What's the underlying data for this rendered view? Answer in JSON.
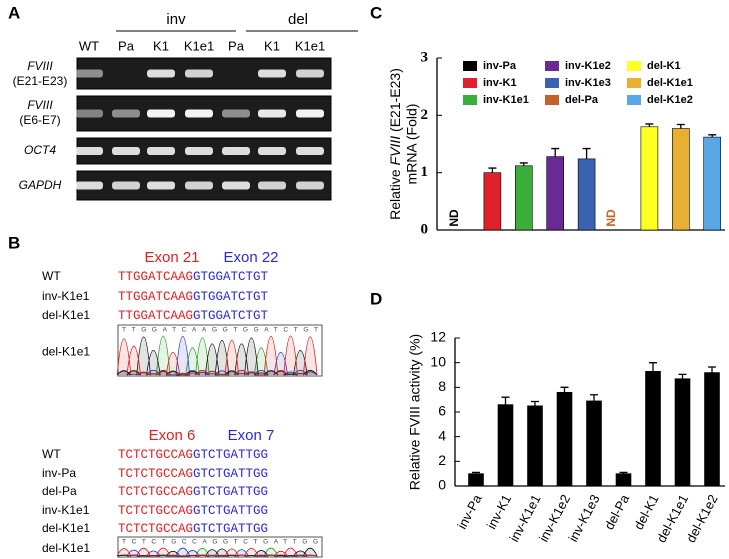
{
  "panel_a": {
    "label": "A",
    "groups": [
      "inv",
      "del"
    ],
    "lanes": [
      "WT",
      "Pa",
      "K1",
      "K1e1",
      "Pa",
      "K1",
      "K1e1"
    ],
    "rows": [
      {
        "gene": "FVIII",
        "region": "(E21-E23)"
      },
      {
        "gene": "FVIII",
        "region": "(E6-E7)"
      },
      {
        "gene": "OCT4"
      },
      {
        "gene": "GAPDH"
      }
    ]
  },
  "panel_b": {
    "label": "B",
    "blocks": [
      {
        "exons": [
          "Exon 21",
          "Exon 22"
        ],
        "rows": [
          {
            "name": "WT",
            "seq": [
              "TTGGATCAAG",
              "GTGGATCTGT"
            ]
          },
          {
            "name": "inv-K1e1",
            "seq": [
              "TTGGATCAAG",
              "GTGGATCTGT"
            ]
          },
          {
            "name": "del-K1e1",
            "seq": [
              "TTGGATCAAG",
              "GTGGATCTGT"
            ]
          }
        ],
        "trace_label": "del-K1e1",
        "trace_bases": "TTGGATCAAGGTGGATCTGT"
      },
      {
        "exons": [
          "Exon 6",
          "Exon 7"
        ],
        "rows": [
          {
            "name": "WT",
            "seq": [
              "TCTCTGCCAG",
              "GTCTGATTGG"
            ]
          },
          {
            "name": "inv-Pa",
            "seq": [
              "TCTCTGCCAG",
              "GTCTGATTGG"
            ]
          },
          {
            "name": "del-Pa",
            "seq": [
              "TCTCTGCCAG",
              "GTCTGATTGG"
            ]
          },
          {
            "name": "inv-K1e1",
            "seq": [
              "TCTCTGCCAG",
              "GTCTGATTGG"
            ]
          },
          {
            "name": "del-K1e1",
            "seq": [
              "TCTCTGCCAG",
              "GTCTGATTGG"
            ]
          }
        ],
        "trace_label": "del-K1e1",
        "trace_bases": "TCTCTGCCAGGTCTGATTGG"
      }
    ]
  },
  "chart_data": [
    {
      "type": "bar",
      "label": "C",
      "y_label": {
        "line1": [
          "Relative ",
          "FVIII",
          " (E21-E23)"
        ],
        "line2": "mRNA (Fold)"
      },
      "categories": [
        "inv-Pa",
        "inv-K1",
        "inv-K1e1",
        "inv-K1e2",
        "inv-K1e3",
        "del-Pa",
        "del-K1",
        "del-K1e1",
        "del-K1e2"
      ],
      "values": [
        null,
        1.0,
        1.12,
        1.28,
        1.24,
        null,
        1.8,
        1.77,
        1.62
      ],
      "value_labels": [
        "ND",
        null,
        null,
        null,
        null,
        "ND",
        null,
        null,
        null
      ],
      "errors": [
        null,
        0.08,
        0.05,
        0.14,
        0.18,
        null,
        0.05,
        0.07,
        0.04
      ],
      "colors": [
        "#000000",
        "#e0202a",
        "#3cae3c",
        "#6a2a96",
        "#3a62b0",
        "#c0622a",
        "#ffff22",
        "#e8b032",
        "#5aa7e8"
      ],
      "ylim": [
        0,
        3
      ],
      "yticks": [
        0,
        1,
        2,
        3
      ],
      "legend": true,
      "x_labels": false
    },
    {
      "type": "bar",
      "label": "D",
      "y_label": "Relative FVIII activity (%)",
      "categories": [
        "inv-Pa",
        "inv-K1",
        "inv-K1e1",
        "inv-K1e2",
        "inv-K1e3",
        "del-Pa",
        "del-K1",
        "del-K1e1",
        "del-K1e2"
      ],
      "values": [
        1.0,
        6.6,
        6.5,
        7.6,
        6.9,
        1.0,
        9.3,
        8.7,
        9.2
      ],
      "errors": [
        0.1,
        0.6,
        0.35,
        0.4,
        0.5,
        0.1,
        0.7,
        0.35,
        0.45
      ],
      "color": "#000000",
      "ylim": [
        0,
        12
      ],
      "yticks": [
        0,
        2,
        4,
        6,
        8,
        10,
        12
      ],
      "legend": false,
      "x_labels": true
    }
  ]
}
